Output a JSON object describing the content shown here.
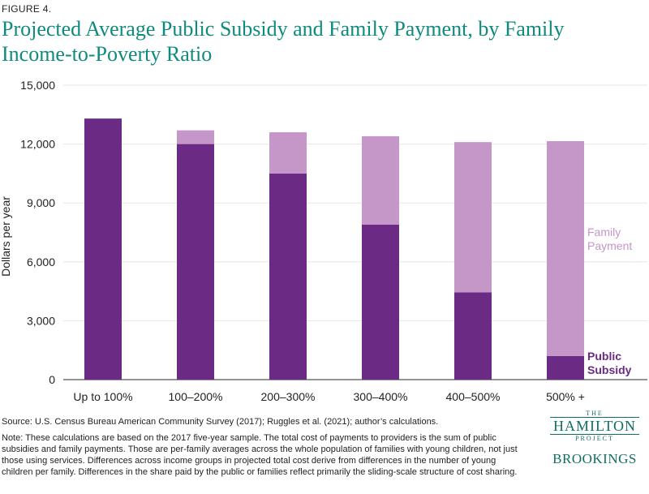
{
  "figure_label": "FIGURE 4.",
  "title": "Projected Average Public Subsidy and Family Payment, by Family Income-to-Poverty Ratio",
  "source": "Source:  U.S. Census Bureau American Community Survey (2017); Ruggles et al. (2021); author’s calculations.",
  "note": "Note: These calculations are based on the 2017 five-year sample. The total cost of payments to providers is the sum of public subsidies and family payments. Those are per-family averages across the whole population of families with young children, not just those using services. Differences across income groups in projected total cost derive from differences in the number of young children per family. Differences in the share paid by the public or families reflect primarily the sliding-scale structure of cost sharing.",
  "logo": {
    "the": "THE",
    "hamilton": "HAMILTON",
    "project": "PROJECT",
    "brookings": "BROOKINGS"
  },
  "chart_data": {
    "type": "bar",
    "stacked": true,
    "categories": [
      "Up to 100%",
      "100–200%",
      "200–300%",
      "300–400%",
      "400–500%",
      "500% +"
    ],
    "series": [
      {
        "name": "Public Subsidy",
        "color": "#6b2a84",
        "values": [
          13300,
          12000,
          10500,
          7900,
          4450,
          1200
        ]
      },
      {
        "name": "Family Payment",
        "color": "#c596c8",
        "values": [
          0,
          700,
          2100,
          4500,
          7650,
          10950
        ]
      }
    ],
    "legend_labels": [
      {
        "lines": [
          "Family",
          "Payment"
        ],
        "color": "#c596c8"
      },
      {
        "lines": [
          "Public",
          "Subsidy"
        ],
        "color": "#6b2a84"
      }
    ],
    "ylabel": "Dollars per year",
    "xlabel": "",
    "ylim": [
      0,
      15000
    ],
    "yticks": [
      0,
      3000,
      6000,
      9000,
      12000,
      15000
    ],
    "ytick_labels": [
      "0",
      "3,000",
      "6,000",
      "9,000",
      "12,000",
      "15,000"
    ],
    "grid": true,
    "legend_position": "right, inline labels"
  }
}
